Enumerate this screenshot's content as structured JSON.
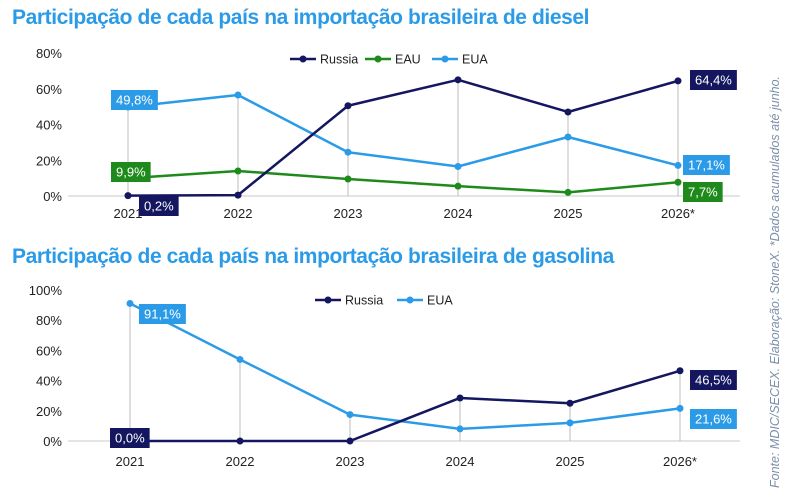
{
  "source_note": "Fonte: MDIC/SECEX. Elaboração: StoneX. *Dados acumulados até junho.",
  "colors": {
    "Russia": "#14175f",
    "EAU": "#1f8a1c",
    "EUA": "#2b9be8",
    "title": "#2b9be8"
  },
  "chart_data": [
    {
      "type": "line",
      "title": "Participação de cada país na importação brasileira de diesel",
      "categories": [
        "2021",
        "2022",
        "2023",
        "2024",
        "2025",
        "2026*"
      ],
      "ylim": [
        0,
        80
      ],
      "yticks": [
        "0%",
        "20%",
        "40%",
        "60%",
        "80%"
      ],
      "legend": "top-center",
      "series": [
        {
          "name": "Russia",
          "values": [
            0.2,
            0.5,
            50.5,
            65.0,
            47.0,
            64.4
          ]
        },
        {
          "name": "EAU",
          "values": [
            9.9,
            14.0,
            9.5,
            5.5,
            2.0,
            7.7
          ]
        },
        {
          "name": "EUA",
          "values": [
            49.8,
            56.5,
            24.5,
            16.5,
            33.0,
            17.1
          ]
        }
      ],
      "data_labels": [
        {
          "series": "EUA",
          "index": 0,
          "text": "49,8%"
        },
        {
          "series": "EAU",
          "index": 0,
          "text": "9,9%"
        },
        {
          "series": "Russia",
          "index": 0,
          "text": "0,2%"
        },
        {
          "series": "Russia",
          "index": 5,
          "text": "64,4%"
        },
        {
          "series": "EUA",
          "index": 5,
          "text": "17,1%"
        },
        {
          "series": "EAU",
          "index": 5,
          "text": "7,7%"
        }
      ]
    },
    {
      "type": "line",
      "title": "Participação de cada país na importação brasileira de gasolina",
      "categories": [
        "2021",
        "2022",
        "2023",
        "2024",
        "2025",
        "2026*"
      ],
      "ylim": [
        0,
        100
      ],
      "yticks": [
        "0%",
        "20%",
        "40%",
        "60%",
        "80%",
        "100%"
      ],
      "legend": "top-center",
      "series": [
        {
          "name": "Russia",
          "values": [
            0.0,
            0.0,
            0.0,
            28.5,
            25.0,
            46.5
          ]
        },
        {
          "name": "EUA",
          "values": [
            91.1,
            54.0,
            17.5,
            8.0,
            12.0,
            21.6
          ]
        }
      ],
      "data_labels": [
        {
          "series": "EUA",
          "index": 0,
          "text": "91,1%"
        },
        {
          "series": "Russia",
          "index": 0,
          "text": "0,0%"
        },
        {
          "series": "Russia",
          "index": 5,
          "text": "46,5%"
        },
        {
          "series": "EUA",
          "index": 5,
          "text": "21,6%"
        }
      ]
    }
  ]
}
